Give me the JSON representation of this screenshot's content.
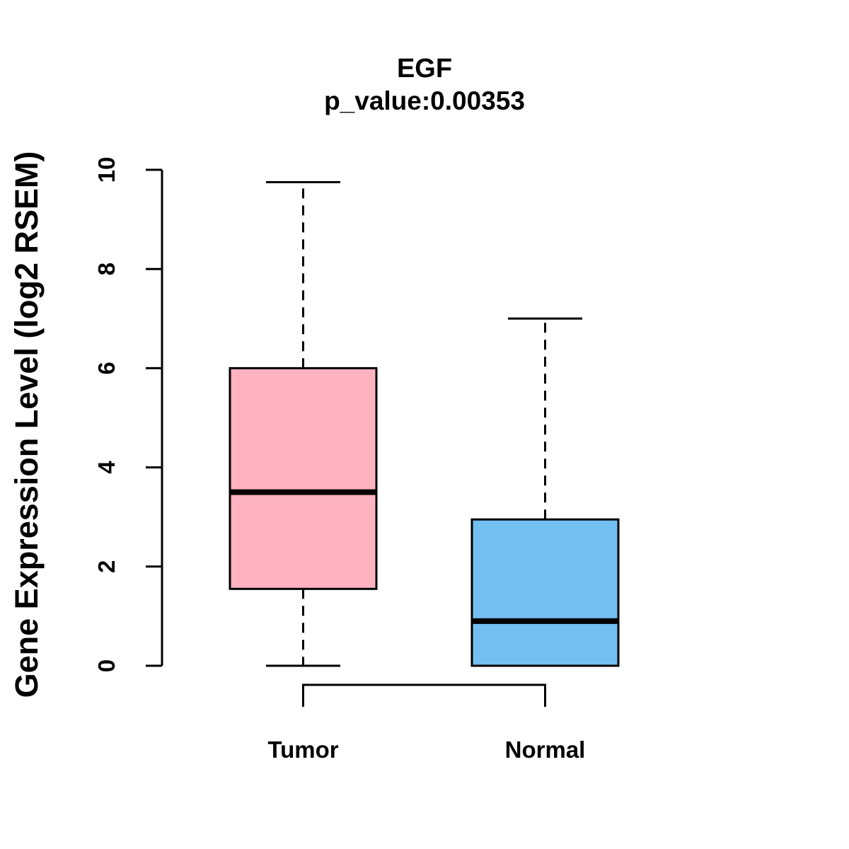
{
  "chart_data": {
    "type": "boxplot",
    "title": "EGF",
    "subtitle": "p_value:0.00353",
    "ylabel": "Gene Expression Level (log2 RSEM)",
    "xlabel": "",
    "categories": [
      "Tumor",
      "Normal"
    ],
    "series": [
      {
        "name": "Tumor",
        "min": 0,
        "q1": 1.55,
        "median": 3.5,
        "q3": 6.0,
        "max": 9.75,
        "fill_color": "#FFB3C1"
      },
      {
        "name": "Normal",
        "min": 0,
        "q1": 0,
        "median": 0.9,
        "q3": 2.95,
        "max": 7.0,
        "fill_color": "#74BFF2"
      }
    ],
    "ylim": [
      0,
      10
    ],
    "yticks": [
      0,
      2,
      4,
      6,
      8,
      10
    ],
    "grid": "off",
    "legend": "none",
    "line_color": "#000000",
    "annotations": {
      "comparison_bracket_between": [
        "Tumor",
        "Normal"
      ]
    }
  }
}
